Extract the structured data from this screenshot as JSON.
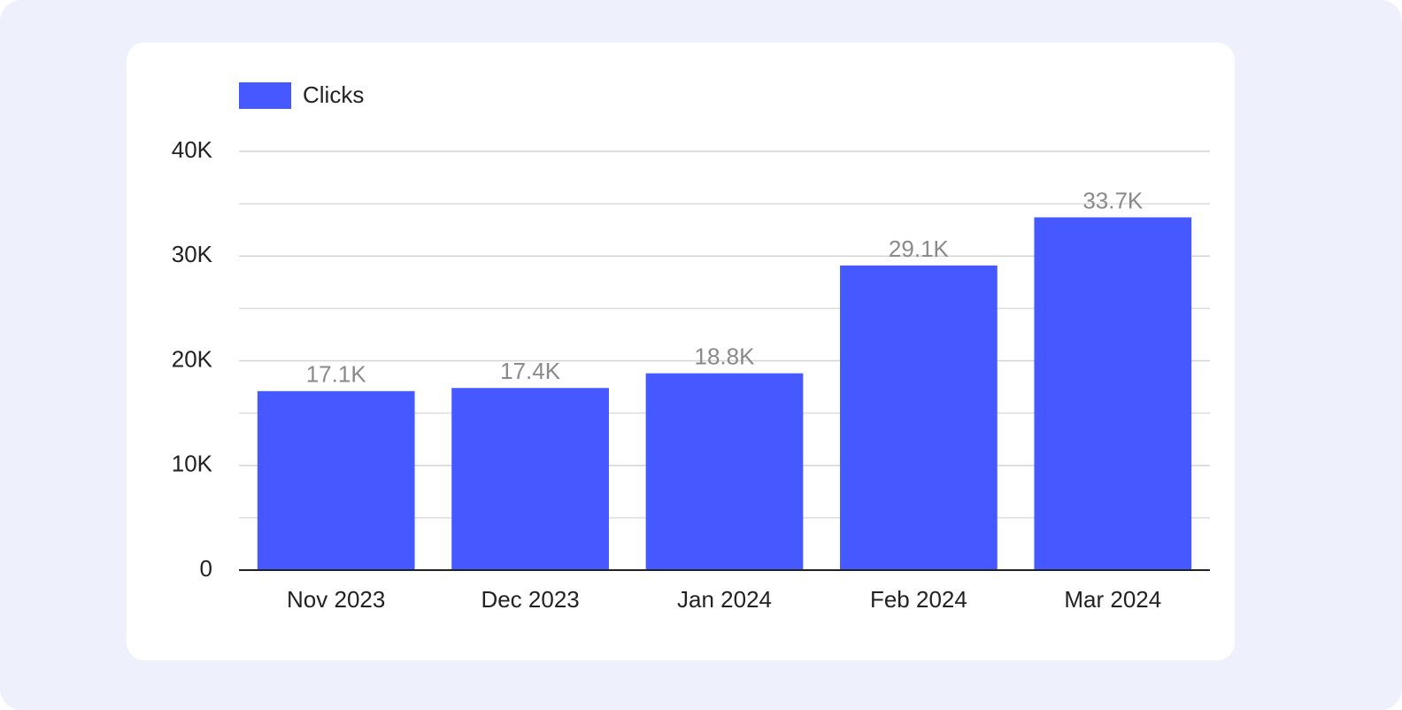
{
  "chart_data": {
    "type": "bar",
    "categories": [
      "Nov 2023",
      "Dec 2023",
      "Jan 2024",
      "Feb 2024",
      "Mar 2024"
    ],
    "series": [
      {
        "name": "Clicks",
        "color": "#4658ff",
        "values": [
          17100,
          17400,
          18800,
          29100,
          33700
        ],
        "value_labels": [
          "17.1K",
          "17.4K",
          "18.8K",
          "29.1K",
          "33.7K"
        ]
      }
    ],
    "ylim": [
      0,
      40000
    ],
    "yticks": [
      0,
      {
        "value": 10000,
        "label": "10K"
      },
      {
        "value": 20000,
        "label": "20K"
      },
      {
        "value": 30000,
        "label": "30K"
      },
      {
        "value": 40000,
        "label": "40K"
      }
    ],
    "minor_yticks": [
      5000,
      15000,
      25000,
      35000
    ],
    "grid": true,
    "legend": "top-left"
  }
}
